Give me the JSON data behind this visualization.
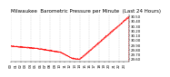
{
  "title": "Milwaukee  Barometric Pressure per Minute  (Last 24 Hours)",
  "background_color": "#ffffff",
  "plot_bg_color": "#ffffff",
  "grid_color": "#bbbbbb",
  "line_color": "#ff0000",
  "y_min": 29.55,
  "y_max": 30.55,
  "y_ticks": [
    29.6,
    29.7,
    29.8,
    29.9,
    30.0,
    30.1,
    30.2,
    30.3,
    30.4,
    30.5
  ],
  "n_points": 1440,
  "title_fontsize": 4.0,
  "tick_fontsize": 2.8,
  "line_width": 0.5,
  "marker_size": 0.4
}
